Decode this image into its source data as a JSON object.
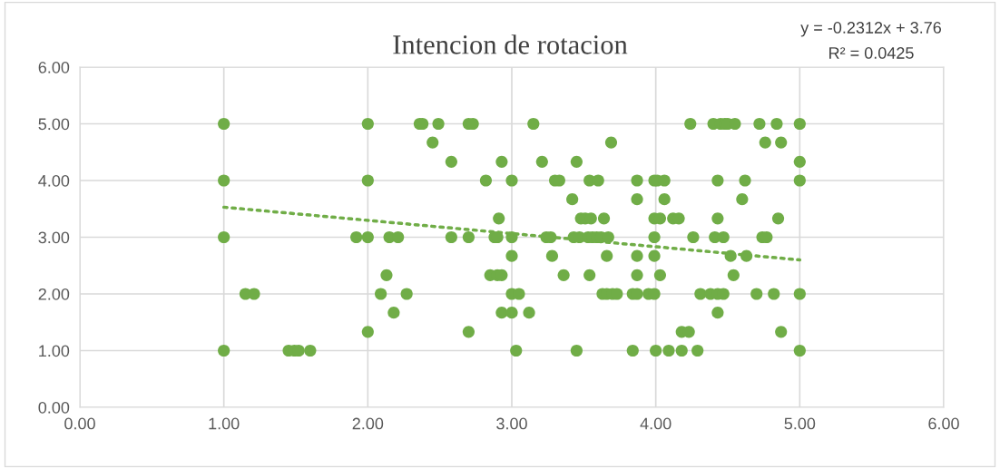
{
  "chart_data": {
    "type": "scatter",
    "title": "Intencion de rotacion",
    "annotations": [
      "y = -0.2312x + 3.76",
      "R² = 0.0425"
    ],
    "xlim": [
      0,
      6
    ],
    "ylim": [
      0,
      6
    ],
    "xticks": [
      {
        "value": 0,
        "label": "0.00"
      },
      {
        "value": 1,
        "label": "1.00"
      },
      {
        "value": 2,
        "label": "2.00"
      },
      {
        "value": 3,
        "label": "3.00"
      },
      {
        "value": 4,
        "label": "4.00"
      },
      {
        "value": 5,
        "label": "5.00"
      },
      {
        "value": 6,
        "label": "6.00"
      }
    ],
    "yticks": [
      {
        "value": 0,
        "label": "0.00"
      },
      {
        "value": 1,
        "label": "1.00"
      },
      {
        "value": 2,
        "label": "2.00"
      },
      {
        "value": 3,
        "label": "3.00"
      },
      {
        "value": 4,
        "label": "4.00"
      },
      {
        "value": 5,
        "label": "5.00"
      },
      {
        "value": 6,
        "label": "6.00"
      }
    ],
    "grid": true,
    "legend": false,
    "series": [
      {
        "color": "#70ad47",
        "marker": "circle",
        "x": [
          1,
          1,
          1,
          1,
          1.15,
          1.21,
          1.45,
          1.49,
          1.52,
          1.6,
          1.92,
          2,
          2,
          2,
          2,
          2.09,
          2.13,
          2.15,
          2.18,
          2.21,
          2.27,
          2.36,
          2.38,
          2.45,
          2.49,
          2.58,
          2.58,
          2.7,
          2.73,
          2.7,
          2.7,
          2.82,
          2.85,
          2.88,
          2.91,
          2.9,
          2.9,
          2.93,
          2.93,
          2.93,
          3,
          3,
          3,
          3,
          3,
          3.03,
          3.05,
          3.12,
          3.15,
          3.21,
          3.24,
          3.27,
          3.28,
          3.3,
          3.33,
          3.36,
          3.42,
          3.43,
          3.45,
          3.45,
          3.47,
          3.48,
          3.51,
          3.54,
          3.54,
          3.55,
          3.53,
          3.56,
          3.6,
          3.59,
          3.62,
          3.64,
          3.63,
          3.67,
          3.66,
          3.66,
          3.69,
          3.7,
          3.73,
          3.84,
          3.84,
          3.87,
          3.87,
          3.87,
          3.87,
          3.87,
          3.95,
          3.99,
          3.99,
          3.99,
          3.99,
          3.99,
          4,
          4.01,
          4.03,
          4.03,
          4.06,
          4.06,
          4.09,
          4.12,
          4.16,
          4.18,
          4.18,
          4.23,
          4.24,
          4.26,
          4.29,
          4.31,
          4.38,
          4.4,
          4.41,
          4.43,
          4.43,
          4.43,
          4.43,
          4.45,
          4.47,
          4.48,
          4.5,
          4.55,
          4.47,
          4.52,
          4.54,
          4.6,
          4.62,
          4.63,
          4.7,
          4.72,
          4.74,
          4.77,
          4.76,
          4.82,
          4.84,
          4.85,
          4.87,
          4.87,
          5,
          5,
          5,
          5,
          5
        ],
        "values": [
          5,
          4,
          3,
          1,
          2,
          2,
          1,
          1,
          1,
          1,
          3,
          5,
          4,
          3,
          1.33,
          2,
          2.33,
          3,
          1.67,
          3,
          2,
          5,
          5,
          4.67,
          5,
          4.33,
          3,
          5,
          5,
          3,
          1.33,
          4,
          2.33,
          3,
          3.33,
          3,
          2.33,
          4.33,
          2.33,
          1.67,
          4,
          3,
          2.67,
          2,
          1.67,
          1,
          2,
          1.67,
          5,
          4.33,
          3,
          3,
          2.67,
          4,
          4,
          2.33,
          3.67,
          3,
          4.33,
          1,
          3,
          3.33,
          3.33,
          4,
          2.33,
          3.33,
          3,
          3,
          4,
          3,
          3,
          3.33,
          2,
          3,
          2.67,
          2,
          4.67,
          2,
          2,
          2,
          1,
          4,
          3.67,
          2.67,
          2.33,
          2,
          2,
          4,
          3.33,
          3,
          2.67,
          2,
          1,
          4,
          3.33,
          2.33,
          4,
          3.67,
          1,
          3.33,
          3.33,
          1.33,
          1,
          1.33,
          5,
          3,
          1,
          2,
          2,
          5,
          3,
          2,
          3.33,
          1.67,
          4,
          5,
          3,
          5,
          5,
          5,
          2,
          2.67,
          2.33,
          3.67,
          4,
          2.67,
          2,
          5,
          3,
          3,
          4.67,
          2,
          5,
          3.33,
          4.67,
          1.33,
          5,
          4.33,
          4,
          2,
          1
        ]
      },
      {
        "type": "line",
        "color": "#70ad47",
        "line_style": "dotted",
        "marker": "none",
        "x": [
          1,
          5
        ],
        "values": [
          3.53,
          2.6
        ]
      }
    ]
  }
}
